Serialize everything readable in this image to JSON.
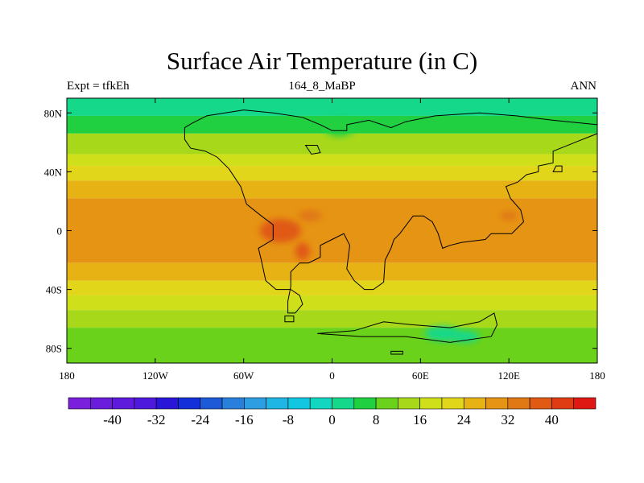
{
  "title": "Surface Air Temperature (in C)",
  "subtitle_left": "Expt = tfkEh",
  "subtitle_center": "164_8_MaBP",
  "subtitle_right": "ANN",
  "map": {
    "lon_range": [
      -180,
      180
    ],
    "lat_range": [
      -90,
      90
    ],
    "x_ticks": [
      {
        "lon": -180,
        "label": "180"
      },
      {
        "lon": -120,
        "label": "120W"
      },
      {
        "lon": -60,
        "label": "60W"
      },
      {
        "lon": 0,
        "label": "0"
      },
      {
        "lon": 60,
        "label": "60E"
      },
      {
        "lon": 120,
        "label": "120E"
      },
      {
        "lon": 180,
        "label": "180"
      }
    ],
    "y_ticks": [
      {
        "lat": 80,
        "label": "80N"
      },
      {
        "lat": 40,
        "label": "40N"
      },
      {
        "lat": 0,
        "label": "0"
      },
      {
        "lat": -40,
        "label": "40S"
      },
      {
        "lat": -80,
        "label": "80S"
      }
    ],
    "field_bands": [
      {
        "lat_top": 90,
        "lat_bottom": 78,
        "value": 2
      },
      {
        "lat_top": 78,
        "lat_bottom": 66,
        "value": 6
      },
      {
        "lat_top": 66,
        "lat_bottom": 52,
        "value": 12
      },
      {
        "lat_top": 52,
        "lat_bottom": 44,
        "value": 18
      },
      {
        "lat_top": 44,
        "lat_bottom": 34,
        "value": 22
      },
      {
        "lat_top": 34,
        "lat_bottom": 22,
        "value": 25
      },
      {
        "lat_top": 22,
        "lat_bottom": -22,
        "value": 29
      },
      {
        "lat_top": -22,
        "lat_bottom": -34,
        "value": 25
      },
      {
        "lat_top": -34,
        "lat_bottom": -44,
        "value": 21
      },
      {
        "lat_top": -44,
        "lat_bottom": -54,
        "value": 17
      },
      {
        "lat_top": -54,
        "lat_bottom": -66,
        "value": 13
      },
      {
        "lat_top": -66,
        "lat_bottom": -90,
        "value": 10
      }
    ],
    "warm_spots": [
      {
        "lon": -35,
        "lat": 0,
        "rlon": 14,
        "rlat": 8,
        "value": 36
      },
      {
        "lon": -20,
        "lat": -14,
        "rlon": 5,
        "rlat": 6,
        "value": 36
      },
      {
        "lon": -15,
        "lat": 10,
        "rlon": 8,
        "rlat": 4,
        "value": 34
      },
      {
        "lon": 120,
        "lat": 10,
        "rlon": 6,
        "rlat": 3,
        "value": 33
      }
    ],
    "cold_spots": [
      {
        "lon": 5,
        "lat": 70,
        "rlon": 10,
        "rlat": 6,
        "value": 5
      },
      {
        "lon": 75,
        "lat": -70,
        "rlon": 12,
        "rlat": 5,
        "value": 3
      },
      {
        "lon": 90,
        "lat": -72,
        "rlon": 10,
        "rlat": 4,
        "value": 2
      }
    ],
    "coastlines": [
      [
        [
          -100,
          70
        ],
        [
          -95,
          73
        ],
        [
          -85,
          78
        ],
        [
          -60,
          82
        ],
        [
          -40,
          80
        ],
        [
          -20,
          77
        ],
        [
          -8,
          72
        ],
        [
          0,
          68
        ],
        [
          10,
          68
        ],
        [
          10,
          72
        ],
        [
          25,
          75
        ],
        [
          40,
          70
        ],
        [
          50,
          74
        ],
        [
          70,
          78
        ],
        [
          100,
          80
        ],
        [
          125,
          78
        ],
        [
          150,
          75
        ],
        [
          180,
          72
        ],
        [
          180,
          66
        ],
        [
          165,
          60
        ],
        [
          150,
          54
        ],
        [
          150,
          46
        ],
        [
          140,
          44
        ],
        [
          140,
          40
        ],
        [
          132,
          38
        ],
        [
          126,
          33
        ],
        [
          118,
          30
        ],
        [
          121,
          22
        ],
        [
          128,
          14
        ],
        [
          130,
          6
        ],
        [
          122,
          -2
        ],
        [
          108,
          -2
        ],
        [
          104,
          -6
        ],
        [
          88,
          -8
        ],
        [
          80,
          -10
        ],
        [
          75,
          -12
        ],
        [
          72,
          -2
        ],
        [
          68,
          6
        ],
        [
          62,
          10
        ],
        [
          55,
          10
        ],
        [
          46,
          -2
        ],
        [
          42,
          -6
        ],
        [
          40,
          -12
        ],
        [
          36,
          -20
        ],
        [
          35,
          -35
        ],
        [
          28,
          -40
        ],
        [
          22,
          -40
        ],
        [
          15,
          -34
        ],
        [
          10,
          -26
        ],
        [
          12,
          -10
        ],
        [
          8,
          -2
        ],
        [
          0,
          -6
        ],
        [
          -8,
          -10
        ],
        [
          -8,
          -18
        ],
        [
          -16,
          -22
        ],
        [
          -22,
          -22
        ],
        [
          -28,
          -28
        ],
        [
          -28,
          -38
        ],
        [
          -30,
          -48
        ],
        [
          -30,
          -56
        ],
        [
          -25,
          -56
        ],
        [
          -20,
          -50
        ],
        [
          -22,
          -44
        ],
        [
          -28,
          -40
        ],
        [
          -38,
          -40
        ],
        [
          -45,
          -34
        ],
        [
          -48,
          -20
        ],
        [
          -50,
          -12
        ],
        [
          -40,
          -6
        ],
        [
          -40,
          4
        ],
        [
          -48,
          10
        ],
        [
          -58,
          18
        ],
        [
          -62,
          30
        ],
        [
          -70,
          42
        ],
        [
          -78,
          50
        ],
        [
          -86,
          54
        ],
        [
          -96,
          56
        ],
        [
          -100,
          62
        ],
        [
          -100,
          70
        ]
      ],
      [
        [
          -18,
          58
        ],
        [
          -10,
          58
        ],
        [
          -8,
          53
        ],
        [
          -14,
          52
        ],
        [
          -18,
          58
        ]
      ],
      [
        [
          -32,
          -58
        ],
        [
          -26,
          -58
        ],
        [
          -26,
          -62
        ],
        [
          -32,
          -62
        ],
        [
          -32,
          -58
        ]
      ],
      [
        [
          -10,
          -70
        ],
        [
          15,
          -68
        ],
        [
          35,
          -62
        ],
        [
          55,
          -64
        ],
        [
          80,
          -66
        ],
        [
          100,
          -62
        ],
        [
          110,
          -56
        ],
        [
          112,
          -64
        ],
        [
          108,
          -72
        ],
        [
          80,
          -76
        ],
        [
          50,
          -72
        ],
        [
          20,
          -72
        ],
        [
          -10,
          -70
        ]
      ],
      [
        [
          40,
          -82
        ],
        [
          48,
          -82
        ],
        [
          48,
          -84
        ],
        [
          40,
          -84
        ],
        [
          40,
          -82
        ]
      ],
      [
        [
          150,
          40
        ],
        [
          152,
          44
        ],
        [
          156,
          44
        ],
        [
          156,
          40
        ],
        [
          150,
          40
        ]
      ]
    ]
  },
  "colorbar": {
    "colors": [
      "#7a1fdc",
      "#6b1ddc",
      "#5e1bdc",
      "#4e19dc",
      "#2a16d8",
      "#1430d8",
      "#1c5ad8",
      "#2880dc",
      "#2e9ee2",
      "#1fb6e6",
      "#12c6e2",
      "#12d6c0",
      "#16d88a",
      "#20d040",
      "#6ad21a",
      "#a8d81a",
      "#cfe01a",
      "#e2d61a",
      "#e6b214",
      "#e69414",
      "#e07814",
      "#e05a14",
      "#e03c14",
      "#e01814"
    ],
    "min": -48,
    "step": 4,
    "labels": [
      "-40",
      "-32",
      "-24",
      "-16",
      "-8",
      "0",
      "8",
      "16",
      "24",
      "32",
      "40"
    ]
  }
}
